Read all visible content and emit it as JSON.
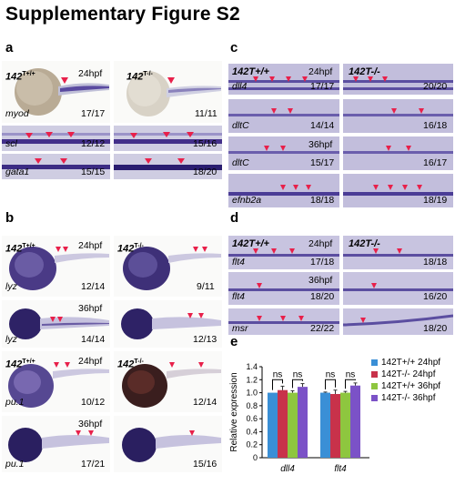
{
  "figure_title": "Supplementary Figure S2",
  "panel_letters": {
    "a": "a",
    "b": "b",
    "c": "c",
    "d": "d",
    "e": "e"
  },
  "panel_a": {
    "geno_wt_main": "142",
    "geno_wt_sup": "T+/+",
    "geno_mut_main": "142",
    "geno_mut_sup": "T-/-",
    "stage": "24hpf",
    "rows": [
      {
        "gene": "myod",
        "count_left": "17/17",
        "count_right": "11/11"
      },
      {
        "gene": "scl",
        "count_left": "12/12",
        "count_right": "15/16"
      },
      {
        "gene": "gata1",
        "count_left": "15/15",
        "count_right": "18/20"
      }
    ]
  },
  "panel_b": {
    "rows": [
      {
        "gene": "lyz",
        "stage": "24hpf",
        "count_left": "12/14",
        "count_right": "9/11",
        "show_geno": true
      },
      {
        "gene": "lyz",
        "stage": "36hpf",
        "count_left": "14/14",
        "count_right": "12/13",
        "show_geno": false
      },
      {
        "gene": "pu.1",
        "stage": "24hpf",
        "count_left": "10/12",
        "count_right": "12/14",
        "show_geno": true
      },
      {
        "gene": "pu.1",
        "stage": "36hpf",
        "count_left": "17/21",
        "count_right": "15/16",
        "show_geno": false
      }
    ],
    "geno_wt_main": "142",
    "geno_wt_sup": "T+/+",
    "geno_mut_main": "142",
    "geno_mut_sup": "T-/-"
  },
  "panel_c": {
    "geno_wt": "142T+/+",
    "geno_mut": "142T-/-",
    "rows": [
      {
        "gene": "dll4",
        "stage": "24hpf",
        "count_left": "17/17",
        "count_right": "20/20"
      },
      {
        "gene": "dltC",
        "stage": "",
        "count_left": "14/14",
        "count_right": "16/18"
      },
      {
        "gene": "dltC",
        "stage": "36hpf",
        "count_left": "15/17",
        "count_right": "16/17"
      },
      {
        "gene": "efnb2a",
        "stage": "",
        "count_left": "18/18",
        "count_right": "18/19"
      }
    ]
  },
  "panel_d": {
    "geno_wt": "142T+/+",
    "geno_mut": "142T-/-",
    "rows": [
      {
        "gene": "flt4",
        "stage": "24hpf",
        "count_left": "17/18",
        "count_right": "18/18"
      },
      {
        "gene": "flt4",
        "stage": "36hpf",
        "count_left": "18/20",
        "count_right": "16/20"
      },
      {
        "gene": "msr",
        "stage": "",
        "count_left": "22/22",
        "count_right": "18/20"
      }
    ]
  },
  "chart_data": {
    "type": "bar",
    "categories": [
      "dll4",
      "flt4"
    ],
    "series": [
      {
        "name": "142T+/+ 24hpf",
        "color": "#3a8fd6",
        "values": [
          1.0,
          1.0
        ]
      },
      {
        "name": "142T-/- 24hpf",
        "color": "#c8324a",
        "values": [
          1.04,
          0.98
        ]
      },
      {
        "name": "142T+/+ 36hpf",
        "color": "#8ec63f",
        "values": [
          1.0,
          1.0
        ]
      },
      {
        "name": "142T-/- 36hpf",
        "color": "#7b52c7",
        "values": [
          1.09,
          1.11
        ]
      }
    ],
    "errors": [
      [
        0.0,
        0.01
      ],
      [
        0.06,
        0.06
      ],
      [
        0.03,
        0.02
      ],
      [
        0.05,
        0.04
      ]
    ],
    "ylabel": "Relative expression",
    "ylim": [
      0,
      1.4
    ],
    "yticks": [
      "0",
      "0.2",
      "0.4",
      "0.6",
      "0.8",
      "1.0",
      "1.2",
      "1.4"
    ],
    "significance": [
      "ns",
      "ns",
      "ns",
      "ns"
    ]
  }
}
